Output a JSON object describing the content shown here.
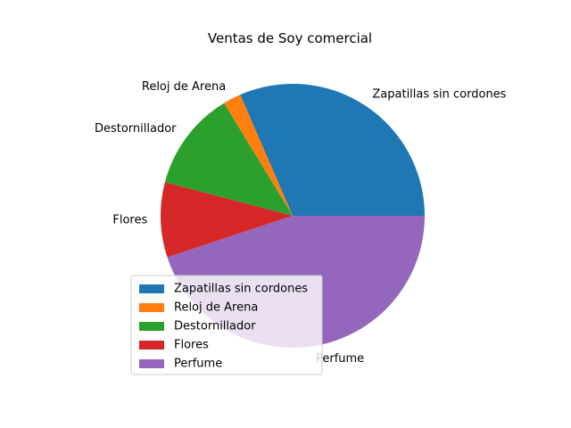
{
  "chart_data": {
    "type": "pie",
    "title": "Ventas de Soy comercial",
    "categories": [
      "Zapatillas sin cordones",
      "Reloj de Arena",
      "Destornillador",
      "Flores",
      "Perfume"
    ],
    "values": [
      31.5,
      2.2,
      12.2,
      9.2,
      44.9
    ],
    "colors": [
      "#1f77b4",
      "#ff7f0e",
      "#2ca02c",
      "#d62728",
      "#9467bd"
    ],
    "start_angle_deg": 0,
    "direction": "counterclockwise",
    "legend": {
      "placement": "lower-left",
      "entries": [
        "Zapatillas sin cordones",
        "Reloj de Arena",
        "Destornillador",
        "Flores",
        "Perfume"
      ]
    }
  }
}
